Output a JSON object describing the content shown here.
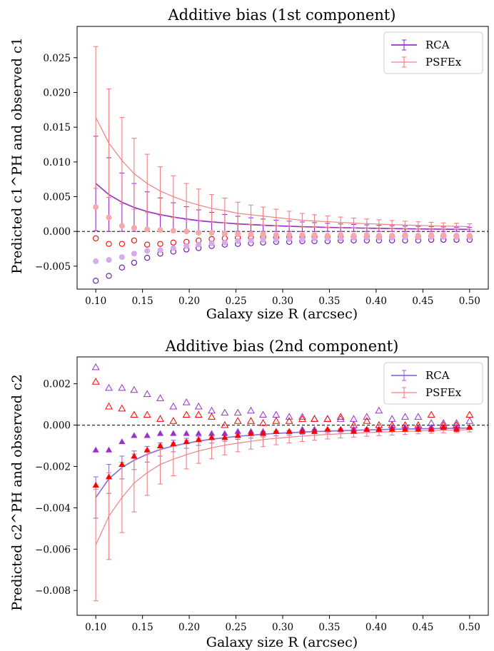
{
  "chart_data": [
    {
      "type": "scatter",
      "title": "Additive bias (1st component)",
      "xlabel": "Galaxy size R (arcsec)",
      "ylabel": "Predicted c1^PH and observed c1",
      "xlim": [
        0.08,
        0.52
      ],
      "ylim": [
        -0.0083,
        0.0295
      ],
      "xticks": [
        "0.10",
        "0.15",
        "0.20",
        "0.25",
        "0.30",
        "0.35",
        "0.40",
        "0.45",
        "0.50"
      ],
      "yticks": [
        "−0.005",
        "0.000",
        "0.005",
        "0.010",
        "0.015",
        "0.020",
        "0.025"
      ],
      "x": [
        0.1,
        0.114,
        0.128,
        0.141,
        0.155,
        0.169,
        0.183,
        0.197,
        0.21,
        0.224,
        0.238,
        0.252,
        0.266,
        0.279,
        0.293,
        0.307,
        0.321,
        0.334,
        0.348,
        0.362,
        0.376,
        0.39,
        0.403,
        0.417,
        0.431,
        0.445,
        0.459,
        0.472,
        0.486,
        0.5
      ],
      "series": [
        {
          "name": "RCA",
          "kind": "line-errorbar",
          "color": "#9932CC",
          "values": [
            0.0069,
            0.0053,
            0.0042,
            0.00345,
            0.00285,
            0.00241,
            0.00206,
            0.00178,
            0.00155,
            0.00137,
            0.00122,
            0.00109,
            0.00098,
            0.00089,
            0.00081,
            0.00074,
            0.00068,
            0.00063,
            0.00058,
            0.00054,
            0.0005,
            0.00047,
            0.00044,
            0.00041,
            0.00038,
            0.00036,
            0.00034,
            0.00032,
            0.0003,
            0.00029
          ],
          "errors": [
            0.0068,
            0.0053,
            0.0042,
            0.00345,
            0.00285,
            0.00241,
            0.00206,
            0.00178,
            0.00155,
            0.00137,
            0.00122,
            0.00109,
            0.00098,
            0.00089,
            0.00081,
            0.00074,
            0.00068,
            0.00063,
            0.00058,
            0.00054,
            0.0005,
            0.00047,
            0.00044,
            0.00041,
            0.00038,
            0.00036,
            0.00034,
            0.00032,
            0.0003,
            0.00029
          ]
        },
        {
          "name": "PSFEx",
          "kind": "line-errorbar",
          "color": "#F08080",
          "values": [
            0.0164,
            0.0127,
            0.0102,
            0.0083,
            0.0069,
            0.0058,
            0.005,
            0.0043,
            0.0038,
            0.0033,
            0.003,
            0.0026,
            0.0024,
            0.0022,
            0.002,
            0.0018,
            0.0016,
            0.0015,
            0.0014,
            0.0013,
            0.0012,
            0.00112,
            0.00105,
            0.00098,
            0.00092,
            0.00087,
            0.00082,
            0.00077,
            0.00073,
            0.00069
          ],
          "errors": [
            0.0102,
            0.0078,
            0.0062,
            0.0051,
            0.0042,
            0.0035,
            0.003,
            0.0026,
            0.0023,
            0.002,
            0.0018,
            0.0016,
            0.0014,
            0.0013,
            0.0012,
            0.0011,
            0.00098,
            0.0009,
            0.00083,
            0.00077,
            0.00072,
            0.00067,
            0.00063,
            0.00059,
            0.00055,
            0.00052,
            0.00049,
            0.00046,
            0.00044,
            0.00041
          ]
        },
        {
          "name": "",
          "kind": "marker",
          "marker": "circle-open",
          "color": "#6A0DAD",
          "values": [
            -0.0071,
            -0.0064,
            -0.0052,
            -0.0045,
            -0.0038,
            -0.0032,
            -0.0029,
            -0.0026,
            -0.0024,
            -0.0021,
            -0.0019,
            -0.0018,
            -0.0017,
            -0.0016,
            -0.0015,
            -0.0015,
            -0.0014,
            -0.0014,
            -0.0014,
            -0.0013,
            -0.0013,
            -0.0013,
            -0.0013,
            -0.0013,
            -0.0013,
            -0.0013,
            -0.0012,
            -0.0012,
            -0.0012,
            -0.0012
          ]
        },
        {
          "name": "",
          "kind": "marker",
          "marker": "circle-open",
          "color": "#FF0000",
          "values": [
            -0.001,
            -0.0018,
            -0.0018,
            -0.0013,
            -0.0019,
            -0.0018,
            -0.0016,
            -0.0015,
            -0.0013,
            -0.0011,
            -0.001,
            -0.0009,
            -0.0009,
            -0.0008,
            -0.0009,
            -0.0008,
            -0.0008,
            -0.0008,
            -0.0008,
            -0.0008,
            -0.0008,
            -0.0008,
            -0.0008,
            -0.0008,
            -0.0007,
            -0.0008,
            -0.0007,
            -0.0007,
            -0.0007,
            -0.0007
          ]
        },
        {
          "name": "",
          "kind": "marker",
          "marker": "circle-filled",
          "color": "#D6ABEC",
          "values": [
            -0.0043,
            -0.0041,
            -0.0037,
            -0.0032,
            -0.0028,
            -0.0027,
            -0.0024,
            -0.0021,
            -0.0019,
            -0.0017,
            -0.0016,
            -0.0014,
            -0.0013,
            -0.0012,
            -0.0012,
            -0.0011,
            -0.0011,
            -0.001,
            -0.001,
            -0.001,
            -0.0009,
            -0.0009,
            -0.0009,
            -0.0009,
            -0.0008,
            -0.0008,
            -0.0008,
            -0.0008,
            -0.0008,
            -0.0008
          ]
        },
        {
          "name": "",
          "kind": "marker",
          "marker": "circle-filled",
          "color": "#F7A8A8",
          "values": [
            0.0035,
            0.002,
            0.0008,
            0.0005,
            0.0003,
            0.0002,
            0.0001,
            0.0,
            -0.0002,
            -0.0002,
            -0.0003,
            -0.0004,
            -0.0004,
            -0.0004,
            -0.0005,
            -0.0005,
            -0.0005,
            -0.0005,
            -0.0006,
            -0.0005,
            -0.0006,
            -0.0005,
            -0.0006,
            -0.0006,
            -0.0005,
            -0.0006,
            -0.0005,
            -0.0005,
            -0.0006,
            -0.0006
          ]
        }
      ],
      "legend": {
        "position": "top-right",
        "entries": [
          "RCA",
          "PSFEx"
        ]
      },
      "zero_line": true
    },
    {
      "type": "scatter",
      "title": "Additive bias (2nd component)",
      "xlabel": "Galaxy size R (arcsec)",
      "ylabel": "Predicted c2^PH and observed c2",
      "xlim": [
        0.08,
        0.52
      ],
      "ylim": [
        -0.0092,
        0.0033
      ],
      "xticks": [
        "0.10",
        "0.15",
        "0.20",
        "0.25",
        "0.30",
        "0.35",
        "0.40",
        "0.45",
        "0.50"
      ],
      "yticks": [
        "−0.008",
        "−0.006",
        "−0.004",
        "−0.002",
        "0.000",
        "0.002"
      ],
      "x": [
        0.1,
        0.114,
        0.128,
        0.141,
        0.155,
        0.169,
        0.183,
        0.197,
        0.21,
        0.224,
        0.238,
        0.252,
        0.266,
        0.279,
        0.293,
        0.307,
        0.321,
        0.334,
        0.348,
        0.362,
        0.376,
        0.39,
        0.403,
        0.417,
        0.431,
        0.445,
        0.459,
        0.472,
        0.486,
        0.5
      ],
      "series": [
        {
          "name": "RCA",
          "kind": "line-errorbar",
          "color": "#9370DB",
          "values": [
            -0.0035,
            -0.0026,
            -0.00205,
            -0.0017,
            -0.00141,
            -0.00118,
            -0.00101,
            -0.00088,
            -0.00077,
            -0.00068,
            -0.00061,
            -0.00054,
            -0.00049,
            -0.00044,
            -0.0004,
            -0.00037,
            -0.00034,
            -0.00031,
            -0.00029,
            -0.00027,
            -0.00025,
            -0.00023,
            -0.00022,
            -0.0002,
            -0.00019,
            -0.00018,
            -0.00017,
            -0.00016,
            -0.00015,
            -0.00014
          ],
          "errors": [
            0.001,
            0.0007,
            0.00055,
            0.00045,
            0.00038,
            0.00032,
            0.00028,
            0.00024,
            0.00021,
            0.00019,
            0.00017,
            0.00015,
            0.00014,
            0.00013,
            0.00012,
            0.00011,
            0.0001,
            0.0001,
            9e-05,
            9e-05,
            8e-05,
            8e-05,
            7e-05,
            7e-05,
            7e-05,
            6e-05,
            6e-05,
            6e-05,
            6e-05,
            5e-05
          ]
        },
        {
          "name": "PSFEx",
          "kind": "line-errorbar",
          "color": "#F08080",
          "values": [
            -0.0058,
            -0.0044,
            -0.0035,
            -0.0028,
            -0.0023,
            -0.0019,
            -0.00165,
            -0.00143,
            -0.00125,
            -0.0011,
            -0.00097,
            -0.00087,
            -0.00078,
            -0.0007,
            -0.00064,
            -0.00058,
            -0.00053,
            -0.00049,
            -0.00045,
            -0.00042,
            -0.00039,
            -0.00036,
            -0.00034,
            -0.00032,
            -0.0003,
            -0.00028,
            -0.00026,
            -0.00025,
            -0.00024,
            -0.00022
          ],
          "errors": [
            0.0027,
            0.0021,
            0.0017,
            0.0014,
            0.0011,
            0.00095,
            0.0008,
            0.00069,
            0.0006,
            0.00053,
            0.00047,
            0.00042,
            0.00038,
            0.00034,
            0.00031,
            0.00028,
            0.00026,
            0.00024,
            0.00022,
            0.0002,
            0.00019,
            0.00018,
            0.00017,
            0.00016,
            0.00015,
            0.00014,
            0.00013,
            0.00012,
            0.00012,
            0.00011
          ]
        },
        {
          "name": "",
          "kind": "marker",
          "marker": "triangle-open",
          "color": "#9932CC",
          "values": [
            0.0028,
            0.0018,
            0.0018,
            0.0017,
            0.0015,
            0.0013,
            0.0009,
            0.0011,
            0.0009,
            0.0007,
            0.0006,
            0.0006,
            0.0007,
            0.0005,
            0.0005,
            0.0004,
            0.0004,
            0.0003,
            0.0003,
            0.0003,
            0.0003,
            0.0004,
            0.0007,
            0.0003,
            0.0004,
            0.0004,
            0.0001,
            0.0001,
            0.0001,
            0.0002
          ]
        },
        {
          "name": "",
          "kind": "marker",
          "marker": "triangle-open",
          "color": "#FF0000",
          "values": [
            0.0021,
            0.0009,
            0.0008,
            0.0005,
            0.0005,
            0.0003,
            0.0002,
            0.0005,
            0.0005,
            0.0004,
            0.0,
            0.0002,
            0.0002,
            0.0001,
            0.0002,
            0.0002,
            0.0003,
            0.0003,
            0.0003,
            0.0004,
            0.0,
            0.0002,
            0.0,
            0.0,
            0.0,
            0.0,
            0.0005,
            0.0,
            0.0,
            0.0005
          ]
        },
        {
          "name": "",
          "kind": "marker",
          "marker": "triangle-filled",
          "color": "#9932CC",
          "values": [
            -0.0012,
            -0.0012,
            -0.0008,
            -0.0005,
            -0.0005,
            -0.0004,
            -0.0004,
            -0.0004,
            -0.0004,
            -0.0004,
            -0.0004,
            -0.0003,
            -0.0003,
            -0.0003,
            -0.0003,
            -0.0003,
            -0.0002,
            -0.0002,
            -0.0002,
            -0.0002,
            -0.0002,
            -0.0002,
            -0.0002,
            -0.0001,
            -0.0001,
            -0.0001,
            -0.0001,
            -0.0001,
            -0.0001,
            -0.0001
          ]
        },
        {
          "name": "",
          "kind": "marker",
          "marker": "triangle-filled",
          "color": "#FF0000",
          "values": [
            -0.0029,
            -0.0025,
            -0.0019,
            -0.0015,
            -0.0012,
            -0.001,
            -0.0009,
            -0.0008,
            -0.0007,
            -0.0006,
            -0.0006,
            -0.0005,
            -0.0004,
            -0.0004,
            -0.0003,
            -0.0003,
            -0.0003,
            -0.0003,
            -0.0002,
            -0.0002,
            -0.0003,
            -0.0002,
            -0.0002,
            -0.0002,
            -0.0002,
            -0.0002,
            -0.0002,
            -0.0001,
            -0.0002,
            -0.0001
          ]
        }
      ],
      "legend": {
        "position": "top-right",
        "entries": [
          "RCA",
          "PSFEx"
        ]
      },
      "zero_line": true
    }
  ]
}
